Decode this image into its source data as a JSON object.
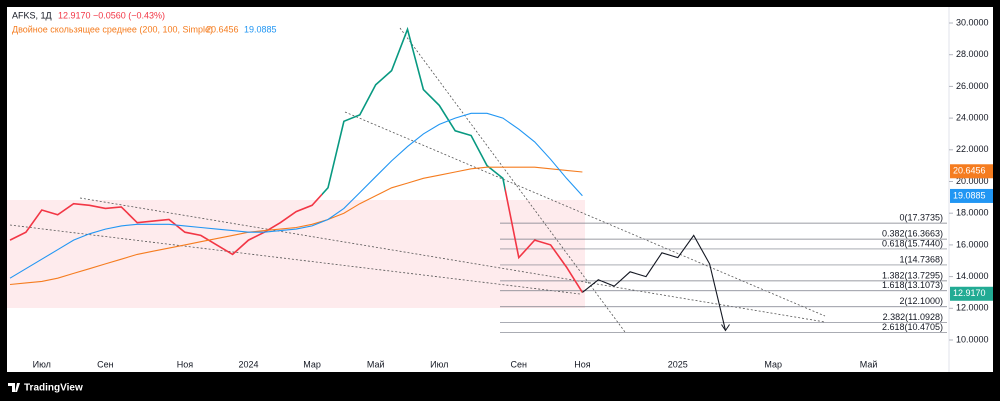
{
  "chart_data": {
    "type": "line",
    "ticker": "AFKS, 1Д",
    "last": "12.9170",
    "change": "−0.0560 (−0.43%)",
    "indicator_label": "Двойное скользящее среднее (200, 100, Simple)",
    "ma_slow_label": "20.6456",
    "ma_fast_label": "19.0885",
    "ma_slow_value": 20.6456,
    "ma_fast_value": 19.0885,
    "last_value": 12.917,
    "categories": [
      null,
      null,
      "Июл",
      null,
      null,
      null,
      "Сен",
      null,
      null,
      null,
      null,
      "Ноя",
      null,
      null,
      null,
      "2024",
      null,
      null,
      null,
      "Мар",
      null,
      null,
      null,
      "Май",
      null,
      null,
      null,
      "Июл",
      null,
      null,
      null,
      null,
      "Сен",
      null,
      null,
      null,
      "Ноя",
      null,
      null,
      null,
      null,
      null,
      "2025",
      null,
      null,
      null,
      null,
      null,
      "Мар",
      null,
      null,
      null,
      null,
      null,
      "Май",
      null,
      null,
      null
    ],
    "series": [
      {
        "name": "AFKS, 1Д",
        "color": "#f23645",
        "rally_color": "#089981",
        "values": [
          16.3,
          16.8,
          18.2,
          17.9,
          18.6,
          18.5,
          18.3,
          18.4,
          17.4,
          17.5,
          17.6,
          16.8,
          16.6,
          16.0,
          15.4,
          16.3,
          16.8,
          17.4,
          18.1,
          18.5,
          19.6,
          23.8,
          24.2,
          26.1,
          27.0,
          29.6,
          25.8,
          24.8,
          23.2,
          22.9,
          21.0,
          20.2,
          15.2,
          16.3,
          16.0,
          14.6,
          13.0,
          null,
          null,
          null,
          null,
          null,
          null,
          null,
          null,
          null,
          null,
          null,
          null,
          null,
          null,
          null,
          null,
          null,
          null,
          null,
          null,
          null
        ]
      },
      {
        "color": "#f57c1f",
        "values": [
          13.5,
          13.6,
          13.7,
          13.9,
          14.2,
          14.5,
          14.8,
          15.1,
          15.4,
          15.6,
          15.8,
          16.0,
          16.2,
          16.4,
          16.6,
          16.8,
          16.9,
          17.0,
          17.1,
          17.3,
          17.6,
          18.0,
          18.6,
          19.1,
          19.6,
          19.9,
          20.2,
          20.4,
          20.6,
          20.8,
          20.9,
          20.9,
          20.9,
          20.9,
          20.8,
          20.7,
          20.6,
          null,
          null,
          null,
          null,
          null,
          null,
          null,
          null,
          null,
          null,
          null,
          null,
          null,
          null,
          null,
          null,
          null,
          null,
          null,
          null,
          null
        ]
      },
      {
        "color": "#2196f3",
        "values": [
          13.9,
          14.5,
          15.1,
          15.7,
          16.3,
          16.7,
          17.0,
          17.2,
          17.3,
          17.3,
          17.3,
          17.2,
          17.1,
          17.0,
          16.9,
          16.8,
          16.8,
          16.9,
          17.0,
          17.2,
          17.6,
          18.3,
          19.3,
          20.3,
          21.3,
          22.2,
          23.0,
          23.6,
          24.0,
          24.3,
          24.3,
          24.0,
          23.3,
          22.5,
          21.4,
          20.2,
          19.1,
          null,
          null,
          null,
          null,
          null,
          null,
          null,
          null,
          null,
          null,
          null,
          null,
          null,
          null,
          null,
          null,
          null,
          null,
          null,
          null,
          null
        ]
      },
      {
        "color": "#131722",
        "values": [
          null,
          null,
          null,
          null,
          null,
          null,
          null,
          null,
          null,
          null,
          null,
          null,
          null,
          null,
          null,
          null,
          null,
          null,
          null,
          null,
          null,
          null,
          null,
          null,
          null,
          null,
          null,
          null,
          null,
          null,
          null,
          null,
          null,
          null,
          null,
          null,
          13.0,
          13.8,
          13.4,
          14.3,
          14.0,
          15.5,
          15.2,
          16.6,
          14.8,
          10.6,
          null,
          null,
          null,
          null,
          null,
          null,
          null,
          null,
          null,
          null,
          null,
          null
        ]
      }
    ],
    "fib_levels": [
      {
        "value": 17.3735,
        "label": "0(17.3735)"
      },
      {
        "value": 16.3663,
        "label": "0.382(16.3663)"
      },
      {
        "value": 15.744,
        "label": "0.618(15.7440)"
      },
      {
        "value": 14.7368,
        "label": "1(14.7368)"
      },
      {
        "value": 13.7295,
        "label": "1.382(13.7295)"
      },
      {
        "value": 13.1073,
        "label": "1.618(13.1073)"
      },
      {
        "value": 12.1,
        "label": "2(12.1000)"
      },
      {
        "value": 11.0928,
        "label": "2.382(11.0928)"
      },
      {
        "value": 10.4705,
        "label": "2.618(10.4705)"
      }
    ],
    "ylim": [
      10,
      30
    ],
    "yticks": [
      {
        "value": 10,
        "label": "10.0000"
      },
      {
        "value": 12,
        "label": "12.0000"
      },
      {
        "value": 14,
        "label": "14.0000"
      },
      {
        "value": 16,
        "label": "16.0000"
      },
      {
        "value": 18,
        "label": "18.0000"
      },
      {
        "value": 20,
        "label": "20.0000"
      },
      {
        "value": 22,
        "label": "22.0000"
      },
      {
        "value": 24,
        "label": "24.0000"
      },
      {
        "value": 26,
        "label": "26.0000"
      },
      {
        "value": 28,
        "label": "28.0000"
      },
      {
        "value": 30,
        "label": "30.0000"
      }
    ],
    "grid": false
  },
  "footer": {
    "brand": "TradingView"
  }
}
